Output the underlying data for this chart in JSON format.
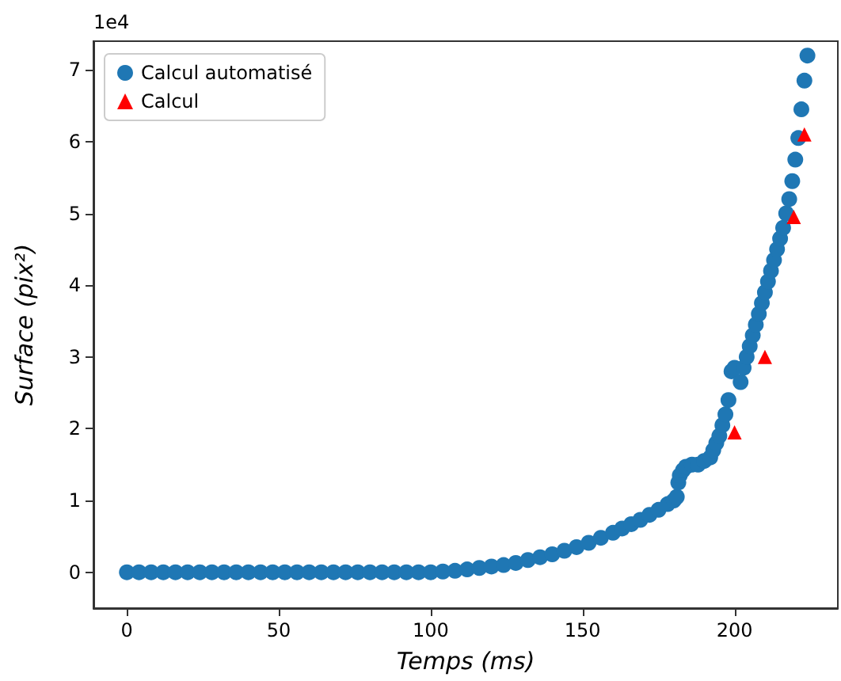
{
  "chart_data": {
    "type": "scatter",
    "xlabel": "Temps (ms)",
    "ylabel": "Surface (pix²)",
    "annotations": [
      "1e4"
    ],
    "xlim": [
      -11,
      234
    ],
    "xticks": [
      0,
      50,
      100,
      150,
      200
    ],
    "ylim": [
      -0.5,
      7.4
    ],
    "yticks": [
      0,
      1,
      2,
      3,
      4,
      5,
      6,
      7
    ],
    "grid": false,
    "legend": "top left",
    "series": [
      {
        "name": "Calcul automatisé",
        "color": "#1f77b4",
        "marker": "circle",
        "x": [
          0,
          4,
          8,
          12,
          16,
          20,
          24,
          28,
          32,
          36,
          40,
          44,
          48,
          52,
          56,
          60,
          64,
          68,
          72,
          76,
          80,
          84,
          88,
          92,
          96,
          100,
          104,
          108,
          112,
          116,
          120,
          124,
          128,
          132,
          136,
          140,
          144,
          148,
          152,
          156,
          160,
          163,
          166,
          169,
          172,
          175,
          178,
          180,
          181,
          181.5,
          182,
          183,
          184,
          186,
          188,
          190,
          192,
          193,
          194,
          195,
          196,
          197,
          198,
          199,
          200,
          202,
          203,
          204,
          205,
          206,
          207,
          208,
          209,
          210,
          211,
          212,
          213,
          214,
          215,
          216,
          217,
          218,
          219,
          220,
          221,
          222,
          223,
          224
        ],
        "values": [
          0,
          0,
          0,
          0,
          0,
          0,
          0,
          0,
          0,
          0,
          0,
          0,
          0,
          0,
          0,
          0,
          0,
          0,
          0,
          0,
          0,
          0,
          0,
          0,
          0,
          0,
          0.01,
          0.02,
          0.04,
          0.06,
          0.08,
          0.1,
          0.13,
          0.17,
          0.21,
          0.25,
          0.3,
          0.35,
          0.41,
          0.48,
          0.55,
          0.61,
          0.67,
          0.73,
          0.8,
          0.87,
          0.95,
          1.0,
          1.05,
          1.25,
          1.35,
          1.42,
          1.47,
          1.5,
          1.5,
          1.55,
          1.6,
          1.7,
          1.8,
          1.9,
          2.05,
          2.2,
          2.4,
          2.8,
          2.85,
          2.65,
          2.85,
          3.0,
          3.15,
          3.3,
          3.45,
          3.6,
          3.75,
          3.9,
          4.05,
          4.2,
          4.35,
          4.5,
          4.65,
          4.8,
          5.0,
          5.2,
          5.45,
          5.75,
          6.05,
          6.45,
          6.85,
          7.2
        ]
      },
      {
        "name": "Calcul",
        "color": "#ff0000",
        "marker": "triangle",
        "x": [
          200,
          210,
          219.5,
          223
        ],
        "values": [
          1.95,
          3.0,
          4.95,
          6.1
        ]
      }
    ]
  }
}
